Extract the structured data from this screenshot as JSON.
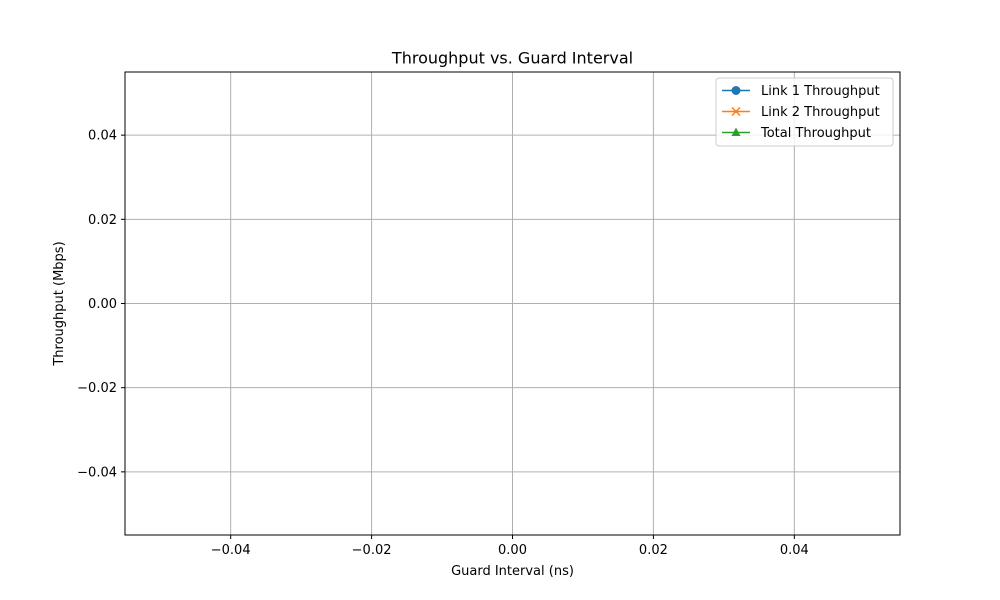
{
  "chart_data": {
    "type": "line",
    "title": "Throughput vs. Guard Interval",
    "xlabel": "Guard Interval (ns)",
    "ylabel": "Throughput (Mbps)",
    "xlim": [
      -0.055,
      0.055
    ],
    "ylim": [
      -0.055,
      0.055
    ],
    "xticks": [
      -0.04,
      -0.02,
      0.0,
      0.02,
      0.04
    ],
    "yticks": [
      -0.04,
      -0.02,
      0.0,
      0.02,
      0.04
    ],
    "xtick_labels": [
      "−0.04",
      "−0.02",
      "0.00",
      "0.02",
      "0.04"
    ],
    "ytick_labels": [
      "−0.04",
      "−0.02",
      "0.00",
      "0.02",
      "0.04"
    ],
    "grid": true,
    "legend_position": "top-right",
    "x": [],
    "series": [
      {
        "name": "Link 1 Throughput",
        "values": [],
        "color": "#1f77b4",
        "marker": "circle"
      },
      {
        "name": "Link 2 Throughput",
        "values": [],
        "color": "#ff7f0e",
        "marker": "x"
      },
      {
        "name": "Total Throughput",
        "values": [],
        "color": "#2ca02c",
        "marker": "triangle"
      }
    ]
  }
}
